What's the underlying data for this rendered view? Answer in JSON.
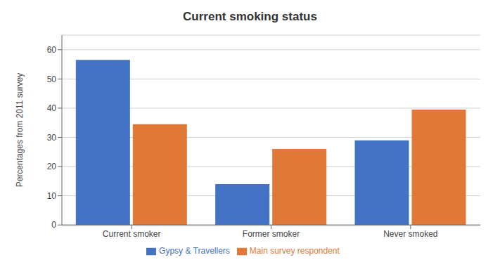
{
  "chart_data": {
    "type": "bar",
    "title": "Current smoking status",
    "ylabel": "Percentages from 2011 survey",
    "categories": [
      "Current smoker",
      "Former smoker",
      "Never smoked"
    ],
    "series": [
      {
        "name": "Gypsy & Travellers",
        "color": "#4472C4",
        "values": [
          56.5,
          14.0,
          29.0
        ]
      },
      {
        "name": "Main survey respondent",
        "color": "#E07838",
        "values": [
          34.5,
          26.0,
          39.5
        ]
      }
    ],
    "ylim": [
      0,
      65
    ],
    "yticks": [
      0,
      10,
      20,
      30,
      40,
      50,
      60
    ],
    "grid": true,
    "legend": "bottom"
  }
}
